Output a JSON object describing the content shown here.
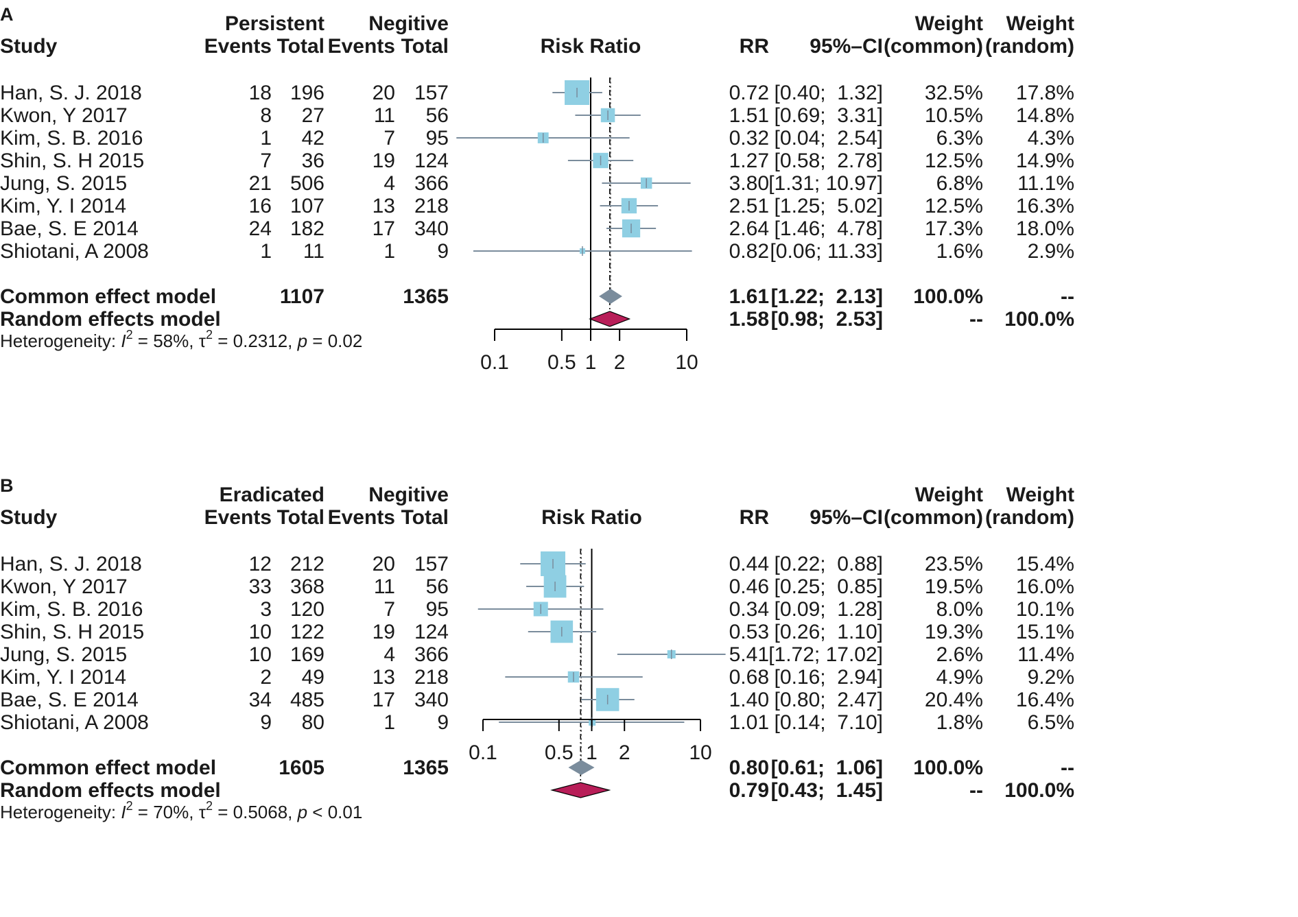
{
  "chart_data": [
    {
      "type": "forest",
      "panel": "A",
      "heading": {
        "study": "Study",
        "group1": "Persistent",
        "group2": "Negitive",
        "events": "Events",
        "total": "Total",
        "axis_label": "Risk Ratio",
        "rr": "RR",
        "ci": "95%–CI",
        "weight": "Weight",
        "weight_common": "(common)",
        "weight_random": "(random)"
      },
      "studies": [
        {
          "name": "Han, S. J. 2018",
          "e1": "18",
          "t1": "196",
          "e2": "20",
          "t2": "157",
          "rr": 0.72,
          "lo": 0.4,
          "hi": 1.32,
          "rr_text": "0.72",
          "ci_text": "[0.40;  1.32]",
          "w_common": "32.5%",
          "w_random": "17.8%"
        },
        {
          "name": "Kwon, Y 2017",
          "e1": "8",
          "t1": "27",
          "e2": "11",
          "t2": "56",
          "rr": 1.51,
          "lo": 0.69,
          "hi": 3.31,
          "rr_text": "1.51",
          "ci_text": "[0.69;  3.31]",
          "w_common": "10.5%",
          "w_random": "14.8%"
        },
        {
          "name": "Kim, S. B. 2016",
          "e1": "1",
          "t1": "42",
          "e2": "7",
          "t2": "95",
          "rr": 0.32,
          "lo": 0.04,
          "hi": 2.54,
          "rr_text": "0.32",
          "ci_text": "[0.04;  2.54]",
          "w_common": "6.3%",
          "w_random": "4.3%"
        },
        {
          "name": "Shin, S. H 2015",
          "e1": "7",
          "t1": "36",
          "e2": "19",
          "t2": "124",
          "rr": 1.27,
          "lo": 0.58,
          "hi": 2.78,
          "rr_text": "1.27",
          "ci_text": "[0.58;  2.78]",
          "w_common": "12.5%",
          "w_random": "14.9%"
        },
        {
          "name": "Jung, S. 2015",
          "e1": "21",
          "t1": "506",
          "e2": "4",
          "t2": "366",
          "rr": 3.8,
          "lo": 1.31,
          "hi": 10.97,
          "rr_text": "3.80",
          "ci_text": "[1.31; 10.97]",
          "w_common": "6.8%",
          "w_random": "11.1%"
        },
        {
          "name": "Kim, Y. I 2014",
          "e1": "16",
          "t1": "107",
          "e2": "13",
          "t2": "218",
          "rr": 2.51,
          "lo": 1.25,
          "hi": 5.02,
          "rr_text": "2.51",
          "ci_text": "[1.25;  5.02]",
          "w_common": "12.5%",
          "w_random": "16.3%"
        },
        {
          "name": "Bae, S. E 2014",
          "e1": "24",
          "t1": "182",
          "e2": "17",
          "t2": "340",
          "rr": 2.64,
          "lo": 1.46,
          "hi": 4.78,
          "rr_text": "2.64",
          "ci_text": "[1.46;  4.78]",
          "w_common": "17.3%",
          "w_random": "18.0%"
        },
        {
          "name": "Shiotani, A 2008",
          "e1": "1",
          "t1": "11",
          "e2": "1",
          "t2": "9",
          "rr": 0.82,
          "lo": 0.06,
          "hi": 11.33,
          "rr_text": "0.82",
          "ci_text": "[0.06; 11.33]",
          "w_common": "1.6%",
          "w_random": "2.9%"
        }
      ],
      "common": {
        "label": "Common effect model",
        "t1": "1107",
        "t2": "1365",
        "rr": 1.61,
        "lo": 1.22,
        "hi": 2.13,
        "rr_text": "1.61",
        "ci_text": "[1.22;  2.13]",
        "w_common": "100.0%",
        "w_random": "--"
      },
      "random": {
        "label": "Random effects model",
        "rr": 1.58,
        "lo": 0.98,
        "hi": 2.53,
        "rr_text": "1.58",
        "ci_text": "[0.98;  2.53]",
        "w_common": "--",
        "w_random": "100.0%"
      },
      "heterogeneity": {
        "prefix": "Heterogeneity: ",
        "i2": " = 58%, ",
        "tau2": " = 0.2312, ",
        "p": " = 0.02"
      },
      "x_axis": {
        "scale": "log",
        "ticks": [
          0.1,
          0.5,
          1,
          2,
          10
        ],
        "tick_labels": [
          "0.1",
          "0.5",
          "1",
          "2",
          "10"
        ],
        "range": [
          0.1,
          10
        ],
        "null_line": 1
      }
    },
    {
      "type": "forest",
      "panel": "B",
      "heading": {
        "study": "Study",
        "group1": "Eradicated",
        "group2": "Negitive",
        "events": "Events",
        "total": "Total",
        "axis_label": "Risk Ratio",
        "rr": "RR",
        "ci": "95%–CI",
        "weight": "Weight",
        "weight_common": "(common)",
        "weight_random": "(random)"
      },
      "studies": [
        {
          "name": "Han, S. J. 2018",
          "e1": "12",
          "t1": "212",
          "e2": "20",
          "t2": "157",
          "rr": 0.44,
          "lo": 0.22,
          "hi": 0.88,
          "rr_text": "0.44",
          "ci_text": "[0.22;  0.88]",
          "w_common": "23.5%",
          "w_random": "15.4%"
        },
        {
          "name": "Kwon, Y 2017",
          "e1": "33",
          "t1": "368",
          "e2": "11",
          "t2": "56",
          "rr": 0.46,
          "lo": 0.25,
          "hi": 0.85,
          "rr_text": "0.46",
          "ci_text": "[0.25;  0.85]",
          "w_common": "19.5%",
          "w_random": "16.0%"
        },
        {
          "name": "Kim, S. B. 2016",
          "e1": "3",
          "t1": "120",
          "e2": "7",
          "t2": "95",
          "rr": 0.34,
          "lo": 0.09,
          "hi": 1.28,
          "rr_text": "0.34",
          "ci_text": "[0.09;  1.28]",
          "w_common": "8.0%",
          "w_random": "10.1%"
        },
        {
          "name": "Shin, S. H 2015",
          "e1": "10",
          "t1": "122",
          "e2": "19",
          "t2": "124",
          "rr": 0.53,
          "lo": 0.26,
          "hi": 1.1,
          "rr_text": "0.53",
          "ci_text": "[0.26;  1.10]",
          "w_common": "19.3%",
          "w_random": "15.1%"
        },
        {
          "name": "Jung, S. 2015",
          "e1": "10",
          "t1": "169",
          "e2": "4",
          "t2": "366",
          "rr": 5.41,
          "lo": 1.72,
          "hi": 17.02,
          "rr_text": "5.41",
          "ci_text": "[1.72; 17.02]",
          "w_common": "2.6%",
          "w_random": "11.4%"
        },
        {
          "name": "Kim, Y. I 2014",
          "e1": "2",
          "t1": "49",
          "e2": "13",
          "t2": "218",
          "rr": 0.68,
          "lo": 0.16,
          "hi": 2.94,
          "rr_text": "0.68",
          "ci_text": "[0.16;  2.94]",
          "w_common": "4.9%",
          "w_random": "9.2%"
        },
        {
          "name": "Bae, S. E 2014",
          "e1": "34",
          "t1": "485",
          "e2": "17",
          "t2": "340",
          "rr": 1.4,
          "lo": 0.8,
          "hi": 2.47,
          "rr_text": "1.40",
          "ci_text": "[0.80;  2.47]",
          "w_common": "20.4%",
          "w_random": "16.4%"
        },
        {
          "name": "Shiotani, A 2008",
          "e1": "9",
          "t1": "80",
          "e2": "1",
          "t2": "9",
          "rr": 1.01,
          "lo": 0.14,
          "hi": 7.1,
          "rr_text": "1.01",
          "ci_text": "[0.14;  7.10]",
          "w_common": "1.8%",
          "w_random": "6.5%"
        }
      ],
      "common": {
        "label": "Common effect model",
        "t1": "1605",
        "t2": "1365",
        "rr": 0.8,
        "lo": 0.61,
        "hi": 1.06,
        "rr_text": "0.80",
        "ci_text": "[0.61;  1.06]",
        "w_common": "100.0%",
        "w_random": "--"
      },
      "random": {
        "label": "Random effects model",
        "rr": 0.79,
        "lo": 0.43,
        "hi": 1.45,
        "rr_text": "0.79",
        "ci_text": "[0.43;  1.45]",
        "w_common": "--",
        "w_random": "100.0%"
      },
      "heterogeneity": {
        "prefix": "Heterogeneity: ",
        "i2": " = 70%, ",
        "tau2": " = 0.5068, ",
        "p": " < 0.01"
      },
      "x_axis": {
        "scale": "log",
        "ticks": [
          0.1,
          0.5,
          1,
          2,
          10
        ],
        "tick_labels": [
          "0.1",
          "0.5",
          "1",
          "2",
          "10"
        ],
        "range": [
          0.1,
          10
        ],
        "null_line": 1
      }
    }
  ],
  "colors": {
    "study_box": "#8fcfe3",
    "ci_line": "#7a8c9c",
    "common_diamond": "#7a8c9c",
    "random_diamond": "#b81e58",
    "text": "#1a1a1a"
  }
}
